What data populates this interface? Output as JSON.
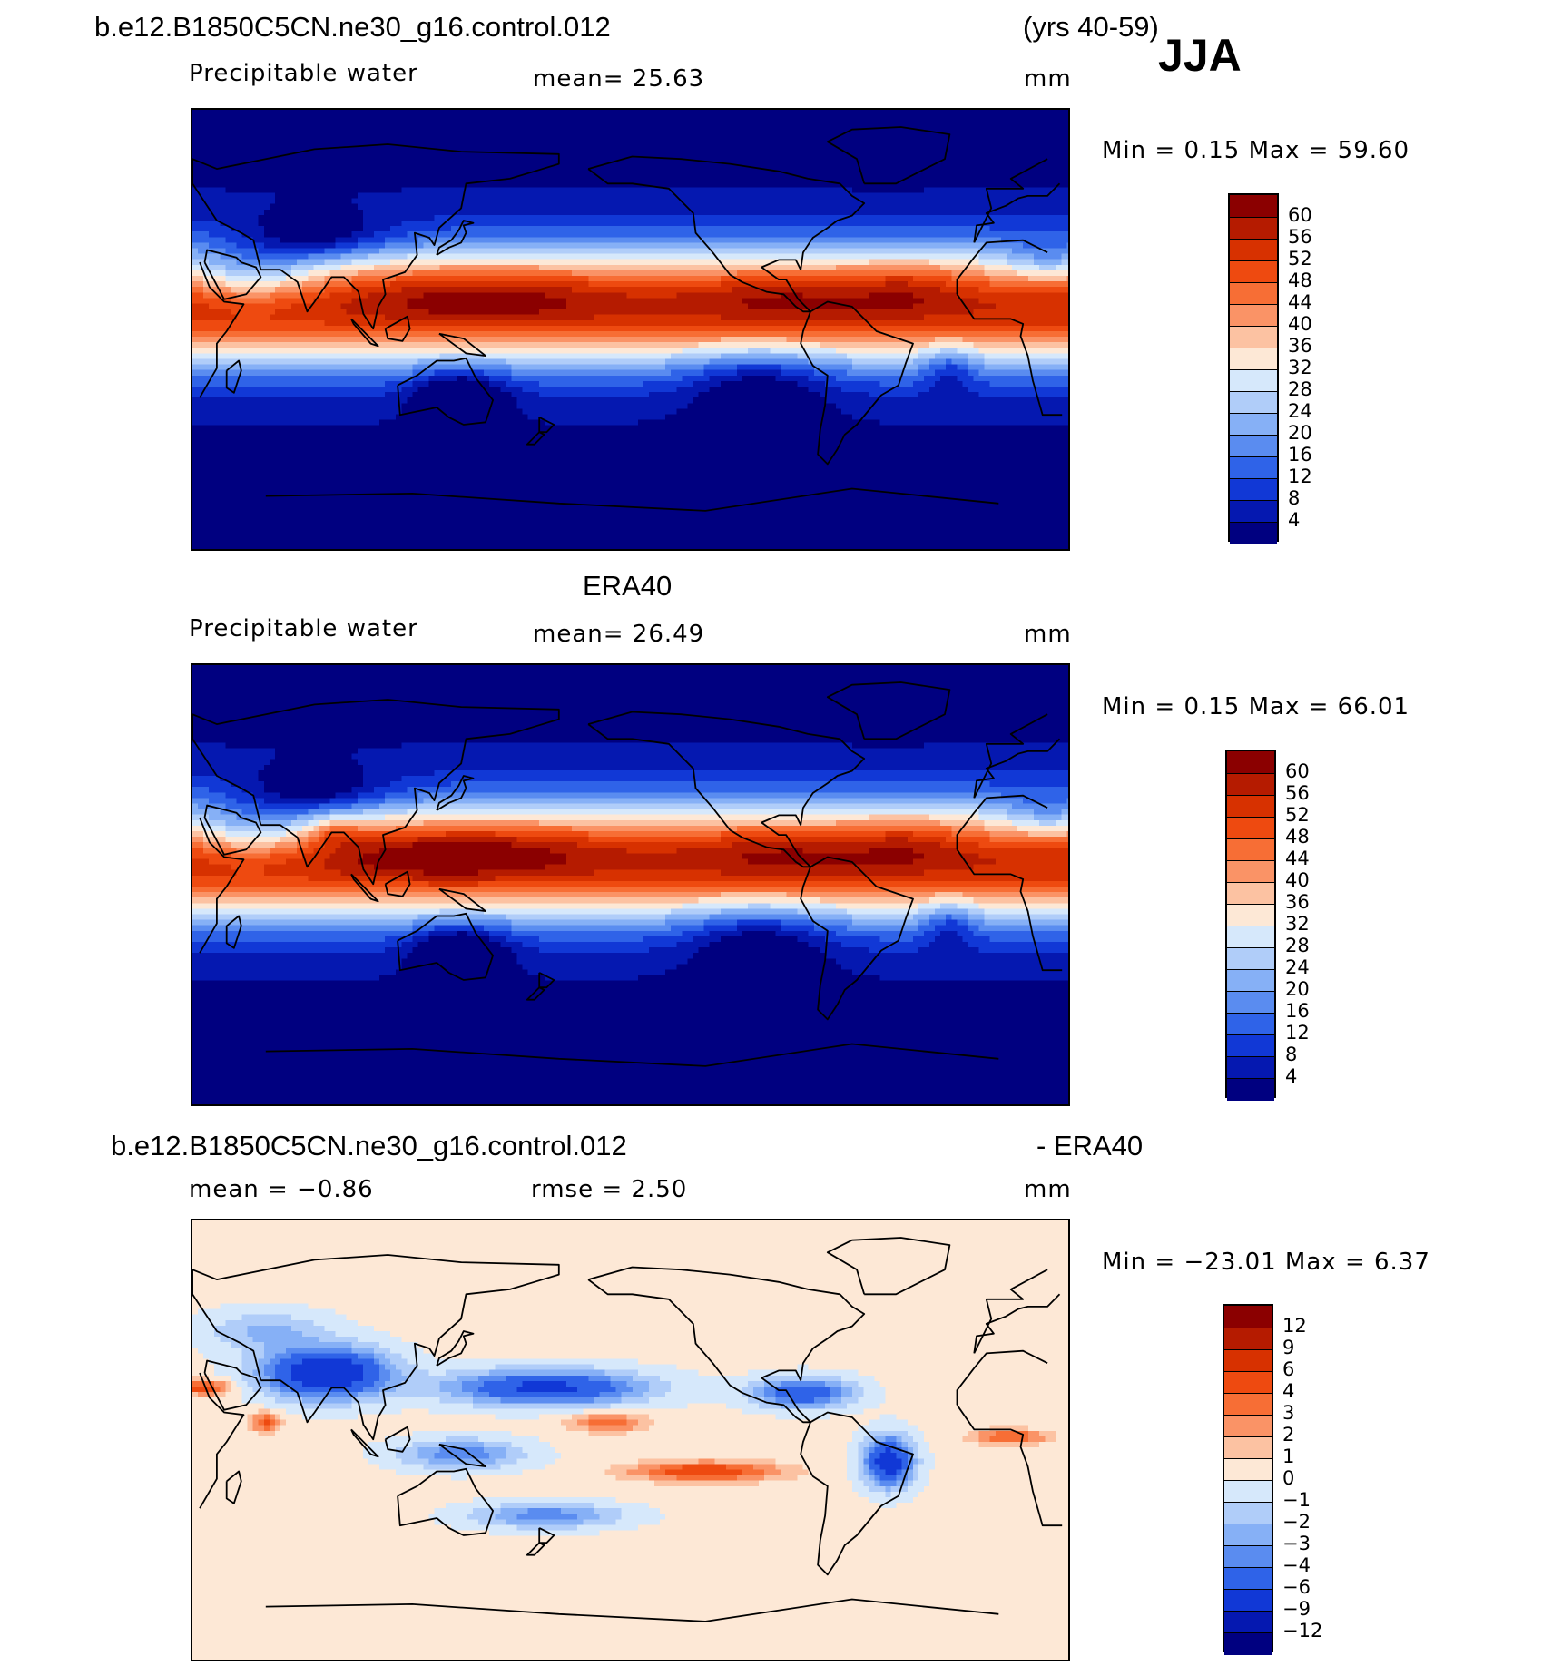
{
  "header": {
    "case_name": "b.e12.B1850C5CN.ne30_g16.control.012",
    "years": "(yrs 40-59)",
    "season": "JJA"
  },
  "panels": [
    {
      "id": "model",
      "variable": "Precipitable water",
      "stat": "mean=   25.63",
      "units": "mm",
      "minmax": "Min =    0.15 Max =   59.60"
    },
    {
      "id": "obs",
      "title": "ERA40",
      "variable": "Precipitable water",
      "stat": "mean=   26.49",
      "units": "mm",
      "minmax": "Min =    0.15 Max =   66.01"
    },
    {
      "id": "diff",
      "title_left": "b.e12.B1850C5CN.ne30_g16.control.012",
      "title_right": "- ERA40",
      "stat": "mean =   −0.86",
      "stat2": "rmse =    2.50",
      "units": "mm",
      "minmax": "Min = −23.01 Max =    6.37"
    }
  ],
  "chart_data": [
    {
      "type": "heatmap",
      "title": "Precipitable water",
      "dataset": "b.e12.B1850C5CN.ne30_g16.control.012",
      "units": "mm",
      "mean": 25.63,
      "min": 0.15,
      "max": 59.6,
      "colorbar_levels": [
        "60",
        "56",
        "52",
        "48",
        "44",
        "40",
        "36",
        "32",
        "28",
        "24",
        "20",
        "16",
        "12",
        "8",
        "4"
      ],
      "colorbar_colors": [
        "#8b0000",
        "#b51b00",
        "#d73100",
        "#ee4a10",
        "#f76e35",
        "#fa9366",
        "#fcc2a2",
        "#fde8d6",
        "#d6e8fb",
        "#b0cdf9",
        "#86b0f6",
        "#5a8cf0",
        "#2f63e8",
        "#1138d6",
        "#0518b0",
        "#000080"
      ]
    },
    {
      "type": "heatmap",
      "title": "ERA40",
      "units": "mm",
      "mean": 26.49,
      "min": 0.15,
      "max": 66.01,
      "colorbar_levels": [
        "60",
        "56",
        "52",
        "48",
        "44",
        "40",
        "36",
        "32",
        "28",
        "24",
        "20",
        "16",
        "12",
        "8",
        "4"
      ],
      "colorbar_colors": [
        "#8b0000",
        "#b51b00",
        "#d73100",
        "#ee4a10",
        "#f76e35",
        "#fa9366",
        "#fcc2a2",
        "#fde8d6",
        "#d6e8fb",
        "#b0cdf9",
        "#86b0f6",
        "#5a8cf0",
        "#2f63e8",
        "#1138d6",
        "#0518b0",
        "#000080"
      ]
    },
    {
      "type": "heatmap",
      "title": "b.e12.B1850C5CN.ne30_g16.control.012 - ERA40",
      "units": "mm",
      "mean": -0.86,
      "rmse": 2.5,
      "min": -23.01,
      "max": 6.37,
      "colorbar_levels": [
        "12",
        "9",
        "6",
        "4",
        "3",
        "2",
        "1",
        "0",
        "−1",
        "−2",
        "−3",
        "−4",
        "−6",
        "−9",
        "−12"
      ],
      "colorbar_colors": [
        "#8b0000",
        "#b51b00",
        "#d73100",
        "#ee4a10",
        "#f76e35",
        "#fa9366",
        "#fcc2a2",
        "#fde8d6",
        "#d6e8fb",
        "#b0cdf9",
        "#86b0f6",
        "#5a8cf0",
        "#2f63e8",
        "#1138d6",
        "#0518b0",
        "#000080"
      ]
    }
  ]
}
